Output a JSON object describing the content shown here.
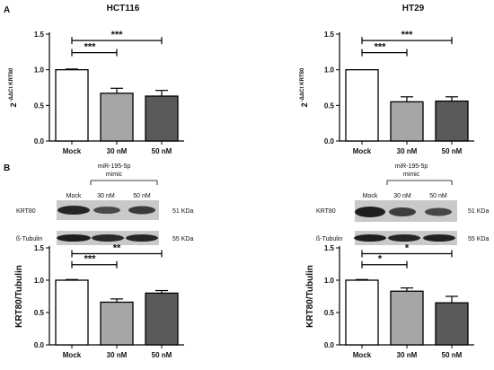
{
  "panel_labels": {
    "a": "A",
    "b": "B"
  },
  "blots": [
    {
      "mir_label": "miR-195-5p",
      "mimic_label": "mimic",
      "lanes": [
        "Mock",
        "30 nM",
        "50 nM"
      ],
      "rows": [
        {
          "protein": "KRT80",
          "size": "51 KDa"
        },
        {
          "protein": "ß-Tubulin",
          "size": "55 KDa"
        }
      ]
    },
    {
      "mir_label": "miR-195-5p",
      "mimic_label": "mimic",
      "lanes": [
        "Mock",
        "30 nM",
        "50 nM"
      ],
      "rows": [
        {
          "protein": "KRT80",
          "size": "51 KDa"
        },
        {
          "protein": "ß-Tubulin",
          "size": "55 KDa"
        }
      ]
    }
  ],
  "colors": {
    "mock": "#ffffff",
    "nm30": "#a6a6a6",
    "nm50": "#5a5a5a",
    "axis": "#000000"
  },
  "chart_data": [
    {
      "type": "bar",
      "title": "HCT116",
      "ylabel_base": "2",
      "ylabel_sup": "-ΔΔCt KRT80",
      "categories": [
        "Mock",
        "30 nM",
        "50 nM"
      ],
      "values": [
        1.0,
        0.67,
        0.63
      ],
      "errors": [
        0.01,
        0.07,
        0.08
      ],
      "ylim": [
        0,
        1.5
      ],
      "yticks": [
        "0.0",
        "0.5",
        "1.0",
        "1.5"
      ],
      "significance": [
        {
          "from": 0,
          "to": 1,
          "label": "***"
        },
        {
          "from": 0,
          "to": 2,
          "label": "***"
        }
      ]
    },
    {
      "type": "bar",
      "title": "HT29",
      "ylabel_base": "2",
      "ylabel_sup": "-ΔΔCt KRT80",
      "categories": [
        "Mock",
        "30 nM",
        "50 nM"
      ],
      "values": [
        1.0,
        0.55,
        0.56
      ],
      "errors": [
        0.0,
        0.07,
        0.06
      ],
      "ylim": [
        0,
        1.5
      ],
      "yticks": [
        "0.0",
        "0.5",
        "1.0",
        "1.5"
      ],
      "significance": [
        {
          "from": 0,
          "to": 1,
          "label": "***"
        },
        {
          "from": 0,
          "to": 2,
          "label": "***"
        }
      ]
    },
    {
      "type": "bar",
      "title": "",
      "ylabel": "KRT80/Tubulin",
      "categories": [
        "Mock",
        "30 nM",
        "50 nM"
      ],
      "values": [
        1.0,
        0.66,
        0.8
      ],
      "errors": [
        0.01,
        0.05,
        0.04
      ],
      "ylim": [
        0,
        1.5
      ],
      "yticks": [
        "0.0",
        "0.5",
        "1.0",
        "1.5"
      ],
      "significance": [
        {
          "from": 0,
          "to": 1,
          "label": "***"
        },
        {
          "from": 0,
          "to": 2,
          "label": "**"
        }
      ]
    },
    {
      "type": "bar",
      "title": "",
      "ylabel": "KRT80/Tubulin",
      "categories": [
        "Mock",
        "30 nM",
        "50 nM"
      ],
      "values": [
        1.0,
        0.83,
        0.65
      ],
      "errors": [
        0.01,
        0.05,
        0.1
      ],
      "ylim": [
        0,
        1.5
      ],
      "yticks": [
        "0.0",
        "0.5",
        "1.0",
        "1.5"
      ],
      "significance": [
        {
          "from": 0,
          "to": 1,
          "label": "*"
        },
        {
          "from": 0,
          "to": 2,
          "label": "*"
        }
      ]
    }
  ]
}
